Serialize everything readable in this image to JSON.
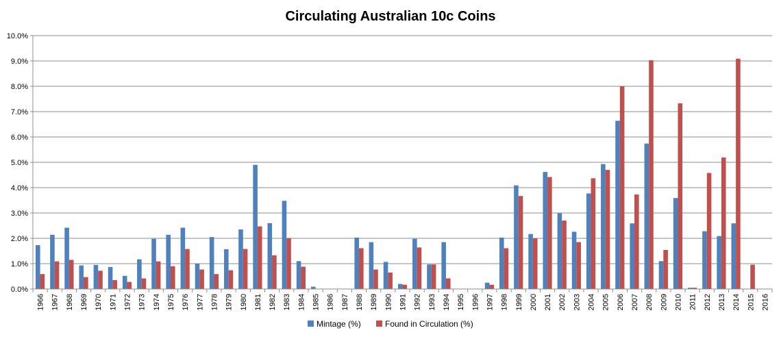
{
  "chart_data": {
    "type": "bar",
    "title": "Circulating Australian 10c Coins",
    "xlabel": "",
    "ylabel": "",
    "categories": [
      "1966",
      "1967",
      "1968",
      "1969",
      "1970",
      "1971",
      "1972",
      "1973",
      "1974",
      "1975",
      "1976",
      "1977",
      "1978",
      "1979",
      "1980",
      "1981",
      "1982",
      "1983",
      "1984",
      "1985",
      "1986",
      "1987",
      "1988",
      "1989",
      "1990",
      "1991",
      "1992",
      "1993",
      "1994",
      "1995",
      "1996",
      "1997",
      "1998",
      "1999",
      "2000",
      "2001",
      "2002",
      "2003",
      "2004",
      "2005",
      "2006",
      "2007",
      "2008",
      "2009",
      "2010",
      "2011",
      "2012",
      "2013",
      "2014",
      "2015",
      "2016"
    ],
    "series": [
      {
        "name": "Mintage (%)",
        "color": "#4F81BD",
        "values": [
          1.73,
          2.14,
          2.42,
          0.93,
          0.95,
          0.87,
          0.52,
          1.17,
          1.98,
          2.14,
          2.42,
          1.0,
          2.05,
          1.57,
          2.35,
          4.9,
          2.6,
          3.48,
          1.1,
          0.09,
          0,
          0,
          2.03,
          1.85,
          1.07,
          0.2,
          1.98,
          0.97,
          1.85,
          0,
          0,
          0.25,
          2.03,
          4.09,
          2.17,
          4.62,
          2.99,
          2.26,
          3.77,
          4.93,
          6.64,
          2.59,
          5.74,
          1.1,
          3.59,
          0.05,
          2.28,
          2.09,
          2.59,
          0,
          0
        ]
      },
      {
        "name": "Found in Circulation (%)",
        "color": "#C0504D",
        "values": [
          0.59,
          1.09,
          1.15,
          0.47,
          0.72,
          0.35,
          0.28,
          0.42,
          1.09,
          0.9,
          1.58,
          0.77,
          0.59,
          0.74,
          1.58,
          2.47,
          1.33,
          2.01,
          0.88,
          0,
          0,
          0,
          1.61,
          0.77,
          0.65,
          0.17,
          1.64,
          0.97,
          0.42,
          0,
          0,
          0.17,
          1.61,
          3.67,
          2.0,
          4.42,
          2.7,
          1.85,
          4.37,
          4.7,
          8.0,
          3.73,
          9.03,
          1.54,
          7.33,
          0.05,
          4.58,
          5.19,
          9.09,
          0.96,
          0
        ]
      }
    ],
    "ylim": [
      0,
      10
    ],
    "y_ticks": [
      "0.0%",
      "1.0%",
      "2.0%",
      "3.0%",
      "4.0%",
      "5.0%",
      "6.0%",
      "7.0%",
      "8.0%",
      "9.0%",
      "10.0%"
    ],
    "grid": true,
    "legend_position": "bottom"
  }
}
